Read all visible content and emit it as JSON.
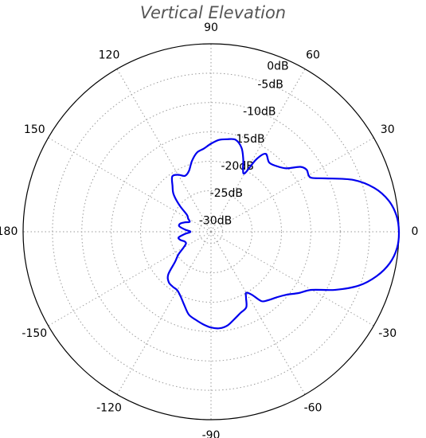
{
  "chart_data": {
    "type": "line",
    "projection": "polar",
    "title": "Vertical Elevation",
    "angle_unit": "degrees",
    "angle_ticks": [
      0,
      30,
      60,
      90,
      120,
      150,
      180,
      -150,
      -120,
      -90,
      -60,
      -30
    ],
    "radial_ticks": [
      0,
      -5,
      -10,
      -15,
      -20,
      -25,
      -30
    ],
    "radial_tick_labels": [
      "0dB",
      "-5dB",
      "-10dB",
      "-15dB",
      "-20dB",
      "-25dB",
      "-30dB"
    ],
    "radial_range": [
      -32,
      0
    ],
    "grid": true,
    "series": [
      {
        "color": "#0000ee",
        "theta": [
          0,
          5,
          10,
          15,
          20,
          25,
          28,
          30,
          33,
          36,
          40,
          45,
          50,
          55,
          58,
          60,
          63,
          66,
          70,
          75,
          80,
          85,
          90,
          95,
          100,
          105,
          110,
          115,
          120,
          125,
          130,
          135,
          140,
          145,
          150,
          155,
          160,
          165,
          170,
          175,
          180,
          -175,
          -170,
          -165,
          -160,
          -155,
          -150,
          -145,
          -140,
          -135,
          -130,
          -125,
          -120,
          -115,
          -110,
          -105,
          -100,
          -95,
          -90,
          -85,
          -80,
          -75,
          -70,
          -65,
          -62,
          -60,
          -57,
          -54,
          -50,
          -45,
          -40,
          -35,
          -30,
          -25,
          -20,
          -15,
          -10,
          -5
        ],
        "r": [
          0,
          -0.3,
          -1.3,
          -3.2,
          -6.2,
          -10.5,
          -12.5,
          -12.8,
          -12.6,
          -13.2,
          -15.2,
          -16.2,
          -16.6,
          -15.8,
          -17.5,
          -20.5,
          -20,
          -18.5,
          -16.8,
          -15.8,
          -16,
          -16.3,
          -17,
          -17.8,
          -18.3,
          -19.5,
          -21,
          -21.5,
          -20.8,
          -20.5,
          -21.8,
          -23,
          -25,
          -27,
          -27.5,
          -28,
          -27.3,
          -26.6,
          -26.5,
          -27.5,
          -28.5,
          -27.5,
          -26.4,
          -26.6,
          -27.2,
          -27.3,
          -26.6,
          -25.2,
          -24,
          -21.7,
          -20.8,
          -20.6,
          -20.5,
          -19.8,
          -18.7,
          -17.4,
          -16.8,
          -16.2,
          -15.7,
          -15.5,
          -15.8,
          -16.6,
          -17.3,
          -17.8,
          -19.3,
          -20,
          -19.2,
          -17.4,
          -16.8,
          -16.2,
          -15.3,
          -13.8,
          -12.2,
          -8.6,
          -5.2,
          -2.8,
          -1.1,
          -0.2
        ]
      }
    ]
  }
}
